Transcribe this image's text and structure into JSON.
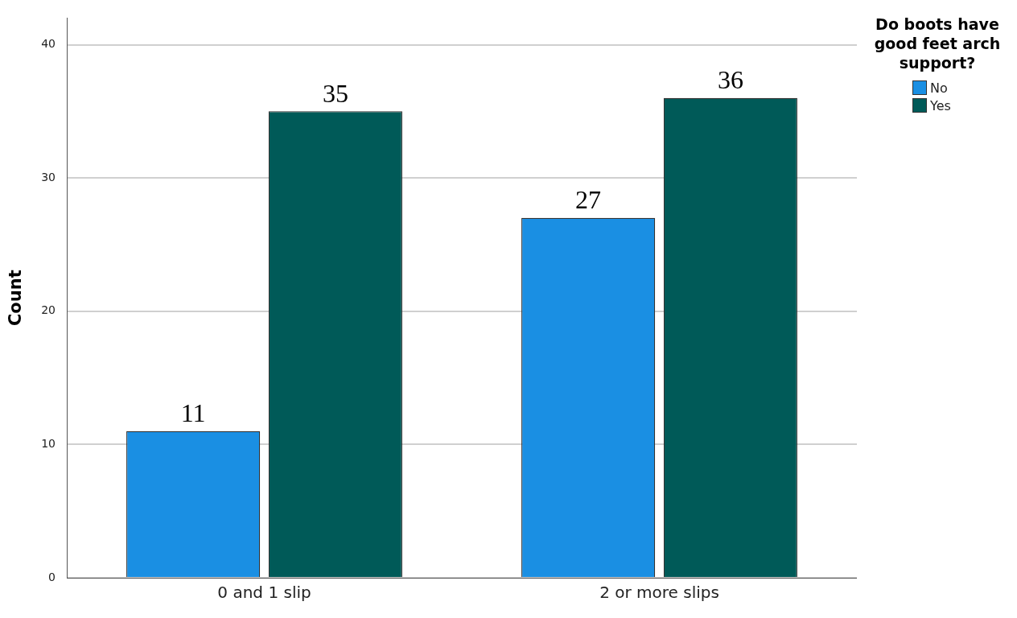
{
  "chart_data": {
    "type": "bar",
    "ylabel": "Count",
    "legend_title": "Do boots have good feet arch support?",
    "categories": [
      "0 and 1 slip",
      "2 or more slips"
    ],
    "series": [
      {
        "name": "No",
        "color": "#1a8fe3",
        "values": [
          11,
          27
        ]
      },
      {
        "name": "Yes",
        "color": "#005a58",
        "values": [
          35,
          36
        ]
      }
    ],
    "ylim": [
      0,
      42
    ],
    "yticks": [
      0,
      10,
      20,
      30,
      40
    ],
    "grid": "y",
    "legend": "top right",
    "data_labels": true
  }
}
